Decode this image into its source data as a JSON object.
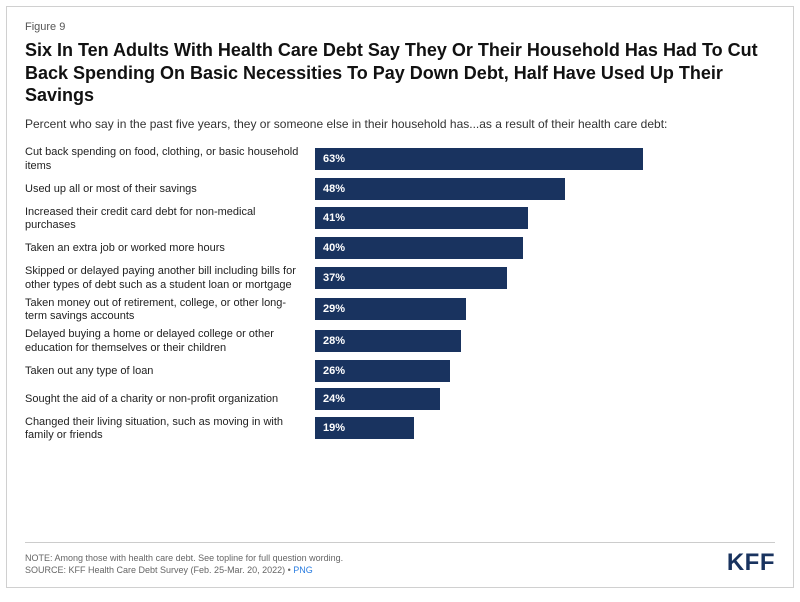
{
  "figure_label": "Figure 9",
  "title": "Six In Ten Adults With Health Care Debt Say They Or Their Household Has Had To Cut Back Spending On Basic Necessities To Pay Down Debt, Half Have Used Up Their Savings",
  "subtitle": "Percent who say in the past five years, they or someone else in their household has...as a result of their health care debt:",
  "chart": {
    "type": "bar",
    "bar_color": "#19335f",
    "value_text_color": "#ffffff",
    "max_value": 100,
    "bar_scale_factor": 5.2,
    "rows": [
      {
        "label": "Cut back spending on food, clothing, or basic household items",
        "value": 63,
        "display": "63%"
      },
      {
        "label": "Used up all or most of their savings",
        "value": 48,
        "display": "48%"
      },
      {
        "label": "Increased their credit card debt for non-medical purchases",
        "value": 41,
        "display": "41%"
      },
      {
        "label": "Taken an extra job or worked more hours",
        "value": 40,
        "display": "40%"
      },
      {
        "label": "Skipped or delayed paying another bill including bills for other types of debt such as a student loan or mortgage",
        "value": 37,
        "display": "37%"
      },
      {
        "label": "Taken money out of retirement, college, or other long-term savings accounts",
        "value": 29,
        "display": "29%"
      },
      {
        "label": "Delayed buying a home or delayed college or other education for themselves or their children",
        "value": 28,
        "display": "28%"
      },
      {
        "label": "Taken out any type of loan",
        "value": 26,
        "display": "26%"
      },
      {
        "label": "Sought the aid of a charity or non-profit organization",
        "value": 24,
        "display": "24%"
      },
      {
        "label": "Changed their living situation, such as moving in with family or friends",
        "value": 19,
        "display": "19%"
      }
    ]
  },
  "footer": {
    "note": "NOTE: Among those with health care debt. See topline for full question wording.",
    "source_prefix": "SOURCE: KFF Health Care Debt Survey (Feb. 25-Mar. 20, 2022) • ",
    "link_text": "PNG",
    "logo": "KFF"
  }
}
